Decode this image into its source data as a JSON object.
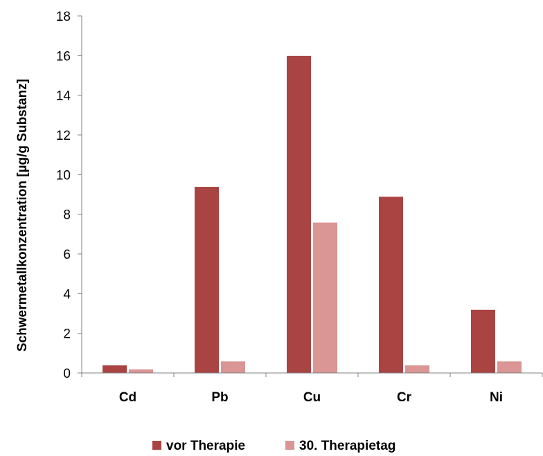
{
  "chart_data": {
    "type": "bar",
    "categories": [
      "Cd",
      "Pb",
      "Cu",
      "Cr",
      "Ni"
    ],
    "series": [
      {
        "name": "vor Therapie",
        "values": [
          0.4,
          9.4,
          16.0,
          8.9,
          3.2
        ],
        "color": "#A94442"
      },
      {
        "name": "30. Therapietag",
        "values": [
          0.2,
          0.6,
          7.6,
          0.4,
          0.6
        ],
        "color": "#D99694"
      }
    ],
    "title": "",
    "xlabel": "",
    "ylabel": "Schwermetallkonzentration [µg/g Substanz]",
    "ylim": [
      0,
      18
    ],
    "yticks": [
      0,
      2,
      4,
      6,
      8,
      10,
      12,
      14,
      16,
      18
    ],
    "grid": false,
    "legend_position": "bottom"
  }
}
